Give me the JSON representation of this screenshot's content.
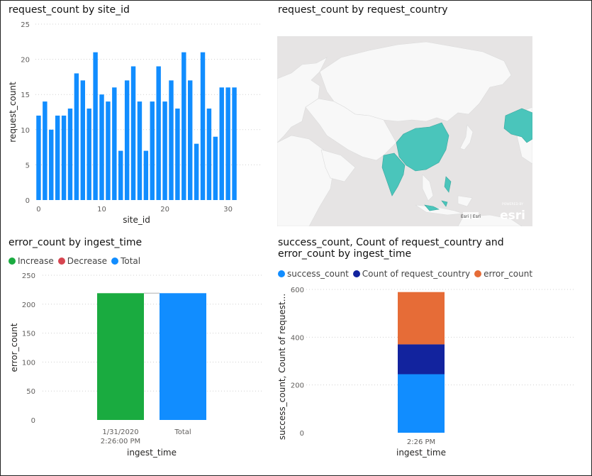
{
  "charts": {
    "site": {
      "title": "request_count by site_id"
    },
    "country": {
      "title": "request_count by request_country",
      "attribution": "Esri | Esri",
      "logo": "esri",
      "powered_by": "POWERED BY"
    },
    "waterfall": {
      "title": "error_count by ingest_time",
      "legend": [
        {
          "label": "Increase",
          "color": "#1aab40"
        },
        {
          "label": "Decrease",
          "color": "#d64550"
        },
        {
          "label": "Total",
          "color": "#118dff"
        }
      ]
    },
    "stacked": {
      "title_line1": "success_count, Count of request_country and",
      "title_line2": "error_count by ingest_time",
      "legend": [
        {
          "label": "success_count",
          "color": "#118dff"
        },
        {
          "label": "Count of request_country",
          "color": "#12239e"
        },
        {
          "label": "error_count",
          "color": "#e66c37"
        }
      ]
    }
  },
  "chart_data": [
    {
      "type": "bar",
      "title": "request_count by site_id",
      "xlabel": "site_id",
      "ylabel": "request_count",
      "x": [
        0,
        1,
        2,
        3,
        4,
        5,
        6,
        7,
        8,
        9,
        10,
        11,
        12,
        13,
        14,
        15,
        16,
        17,
        18,
        19,
        20,
        21,
        22,
        23,
        24,
        25,
        26,
        27,
        28,
        29,
        30,
        31
      ],
      "values": [
        12,
        14,
        10,
        12,
        12,
        13,
        18,
        17,
        13,
        21,
        15,
        14,
        16,
        7,
        17,
        19,
        14,
        7,
        14,
        19,
        14,
        17,
        13,
        21,
        17,
        8,
        21,
        13,
        9,
        16,
        16,
        16
      ],
      "xticks": [
        "0",
        "10",
        "20",
        "30"
      ],
      "yticks": [
        "0",
        "5",
        "10",
        "15",
        "20",
        "25"
      ],
      "ylim": [
        0,
        25
      ],
      "color": "#118dff",
      "grid": true
    },
    {
      "type": "bar",
      "subtype": "waterfall",
      "title": "error_count by ingest_time",
      "xlabel": "ingest_time",
      "ylabel": "error_count",
      "categories": [
        "1/31/2020|2:26:00 PM",
        "Total"
      ],
      "values": [
        219,
        219
      ],
      "colors": [
        "#1aab40",
        "#118dff"
      ],
      "yticks": [
        "0",
        "50",
        "100",
        "150",
        "200",
        "250"
      ],
      "ylim": [
        0,
        250
      ],
      "grid": true
    },
    {
      "type": "bar",
      "subtype": "stacked",
      "title": "success_count, Count of request_country and error_count by ingest_time",
      "xlabel": "ingest_time",
      "ylabel": "success_count, Count of request...",
      "categories": [
        "2:26 PM"
      ],
      "series": [
        {
          "name": "success_count",
          "values": [
            245
          ],
          "color": "#118dff"
        },
        {
          "name": "Count of request_country",
          "values": [
            125
          ],
          "color": "#12239e"
        },
        {
          "name": "error_count",
          "values": [
            219
          ],
          "color": "#e66c37"
        }
      ],
      "yticks": [
        "0",
        "200",
        "400",
        "600"
      ],
      "ylim": [
        0,
        600
      ],
      "grid": true
    }
  ]
}
